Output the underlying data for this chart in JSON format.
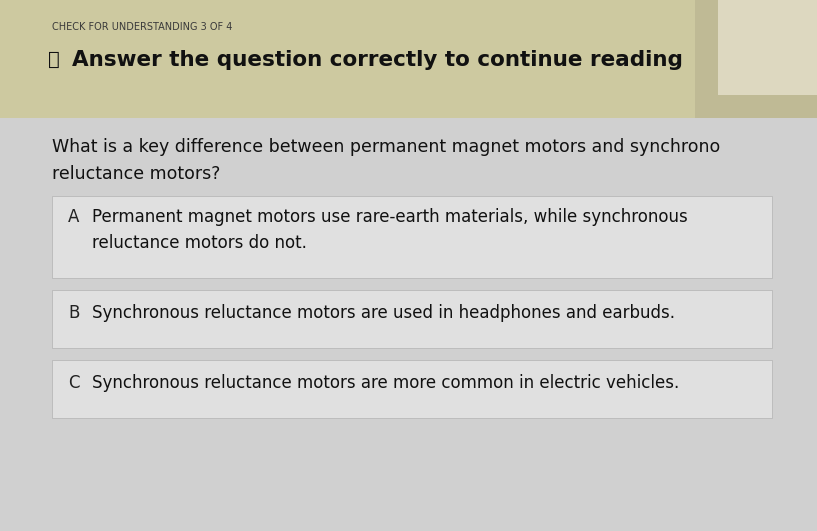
{
  "header_label": "CHECK FOR UNDERSTANDING 3 OF 4",
  "header_bg": "#cdc9a0",
  "header_text": "Answer the question correctly to continue reading",
  "question_line1": "What is a key difference between permanent magnet motors and synchrono",
  "question_line2": "reluctance motors?",
  "choices": [
    {
      "letter": "A",
      "line1": "Permanent magnet motors use rare-earth materials, while synchronous",
      "line2": "reluctance motors do not."
    },
    {
      "letter": "B",
      "line1": "Synchronous reluctance motors are used in headphones and earbuds.",
      "line2": ""
    },
    {
      "letter": "C",
      "line1": "Synchronous reluctance motors are more common in electric vehicles.",
      "line2": ""
    }
  ],
  "page_bg": "#d0d0d0",
  "header_label_color": "#3a3a3a",
  "header_text_color": "#111111",
  "question_color": "#111111",
  "choice_letter_color": "#222222",
  "choice_text_color": "#111111",
  "choice_bg": "#e0e0e0",
  "choice_border": "#b8b8b8",
  "corner_bg": "#bfba95",
  "corner_light": "#ddd8c0"
}
